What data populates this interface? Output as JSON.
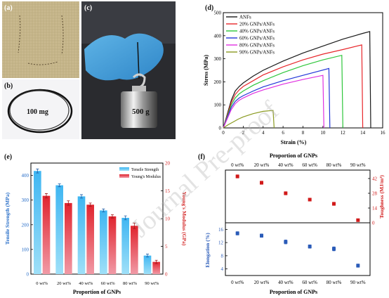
{
  "panel_labels": {
    "a": "(a)",
    "b": "(b)",
    "c": "(c)",
    "d": "(d)",
    "e": "(e)",
    "f": "(f)"
  },
  "photo_b_text": "100 mg",
  "photo_c_text": "500 g",
  "watermark": "Journal Pre-proof",
  "colors": {
    "ANFs": "#1a1a1a",
    "20% GNPs/ANFs": "#e8262b",
    "40% GNPs/ANFs": "#2ec63b",
    "60% GNPs/ANFs": "#2236d8",
    "80% GNPs/ANFs": "#e030e0",
    "90% GNPs/ANFs": "#8a9a20",
    "tensile_bar": "#3cb4f0",
    "modulus_bar": "#e8262b",
    "toughness_marker": "#d11a1a",
    "elongation_marker": "#2a5bb8"
  },
  "chart_data": [
    {
      "id": "d",
      "type": "line",
      "xlabel": "Strain (%)",
      "ylabel": "Stress (MPa)",
      "xlim": [
        0,
        16
      ],
      "ylim": [
        0,
        500
      ],
      "xticks": [
        0,
        2,
        4,
        6,
        8,
        10,
        12,
        14,
        16
      ],
      "yticks": [
        0,
        100,
        200,
        300,
        400,
        500
      ],
      "legend_position": "top-left",
      "series": [
        {
          "name": "ANFs",
          "points": [
            [
              0,
              0
            ],
            [
              0.4,
              60
            ],
            [
              0.8,
              120
            ],
            [
              1.2,
              160
            ],
            [
              1.6,
              180
            ],
            [
              2,
              195
            ],
            [
              3,
              225
            ],
            [
              4,
              250
            ],
            [
              6,
              290
            ],
            [
              8,
              325
            ],
            [
              10,
              355
            ],
            [
              12,
              385
            ],
            [
              14,
              410
            ],
            [
              14.7,
              418
            ],
            [
              14.8,
              0
            ]
          ]
        },
        {
          "name": "20% GNPs/ANFs",
          "points": [
            [
              0,
              0
            ],
            [
              0.4,
              55
            ],
            [
              0.8,
              110
            ],
            [
              1.2,
              145
            ],
            [
              1.6,
              165
            ],
            [
              2,
              180
            ],
            [
              3,
              205
            ],
            [
              4,
              230
            ],
            [
              6,
              265
            ],
            [
              8,
              295
            ],
            [
              10,
              320
            ],
            [
              12,
              340
            ],
            [
              13.9,
              360
            ],
            [
              14,
              0
            ]
          ]
        },
        {
          "name": "40% GNPs/ANFs",
          "points": [
            [
              0,
              0
            ],
            [
              0.4,
              50
            ],
            [
              0.8,
              100
            ],
            [
              1.2,
              130
            ],
            [
              1.6,
              148
            ],
            [
              2,
              160
            ],
            [
              3,
              185
            ],
            [
              4,
              205
            ],
            [
              6,
              240
            ],
            [
              8,
              270
            ],
            [
              10,
              295
            ],
            [
              11.9,
              315
            ],
            [
              12,
              0
            ]
          ]
        },
        {
          "name": "60% GNPs/ANFs",
          "points": [
            [
              0,
              0
            ],
            [
              0.4,
              45
            ],
            [
              0.8,
              90
            ],
            [
              1.2,
              115
            ],
            [
              1.6,
              130
            ],
            [
              2,
              140
            ],
            [
              3,
              160
            ],
            [
              4,
              178
            ],
            [
              6,
              205
            ],
            [
              8,
              228
            ],
            [
              10.6,
              258
            ],
            [
              10.7,
              0
            ]
          ]
        },
        {
          "name": "80% GNPs/ANFs",
          "points": [
            [
              0,
              0
            ],
            [
              0.4,
              40
            ],
            [
              0.8,
              80
            ],
            [
              1.2,
              105
            ],
            [
              1.6,
              120
            ],
            [
              2,
              130
            ],
            [
              3,
              150
            ],
            [
              4,
              165
            ],
            [
              6,
              190
            ],
            [
              8,
              210
            ],
            [
              10,
              228
            ],
            [
              10.1,
              0
            ]
          ]
        },
        {
          "name": "90% GNPs/ANFs",
          "points": [
            [
              0,
              0
            ],
            [
              0.5,
              14
            ],
            [
              1,
              26
            ],
            [
              1.5,
              38
            ],
            [
              2,
              48
            ],
            [
              3,
              62
            ],
            [
              4,
              72
            ],
            [
              5,
              76
            ],
            [
              5.1,
              0
            ]
          ]
        }
      ]
    },
    {
      "id": "e",
      "type": "bar",
      "xlabel": "Proportion of GNPs",
      "ylabel_left": "Tensile Strength (MPa)",
      "ylabel_right": "Young's Modulus (GPa)",
      "categories": [
        "0 wt%",
        "20 wt%",
        "40 wt%",
        "60 wt%",
        "80 wt%",
        "90 wt%"
      ],
      "ylim_left": [
        0,
        450
      ],
      "ylim_right": [
        0,
        20
      ],
      "yticks_left": [
        0,
        100,
        200,
        300,
        400
      ],
      "yticks_right": [
        0,
        5,
        10,
        15,
        20
      ],
      "legend_position": "top-right",
      "series": [
        {
          "name": "Tensile Strength",
          "axis": "left",
          "values": [
            418,
            360,
            315,
            258,
            228,
            75
          ],
          "errors": [
            8,
            6,
            7,
            6,
            8,
            6
          ]
        },
        {
          "name": "Young's Modulus",
          "axis": "right",
          "values": [
            14.1,
            12.8,
            12.5,
            10.4,
            8.7,
            2.2
          ],
          "errors": [
            0.4,
            0.4,
            0.3,
            0.3,
            0.5,
            0.3
          ]
        }
      ]
    },
    {
      "id": "f",
      "type": "scatter",
      "xlabel_top": "Proportion of GNPs",
      "xlabel_bottom": "Proportion of GNPs",
      "categories": [
        "0 wt%",
        "20 wt%",
        "40 wt%",
        "60 wt%",
        "80 wt%",
        "90 wt%"
      ],
      "panels": [
        {
          "name": "Toughness",
          "ylabel": "Toughness (MJ/m³)",
          "axis": "right",
          "ylim": [
            0,
            50
          ],
          "yticks": [
            0,
            14,
            28,
            42
          ],
          "values": [
            44,
            38,
            28,
            22,
            18,
            2.5
          ],
          "errors": [
            1.5,
            1.5,
            1.5,
            1.2,
            1.5,
            0.5
          ]
        },
        {
          "name": "Elongation",
          "ylabel": "Elongation (%)",
          "axis": "left",
          "ylim": [
            2,
            18
          ],
          "yticks": [
            4,
            8,
            12,
            16
          ],
          "values": [
            14.8,
            14.1,
            12.2,
            10.8,
            10.1,
            5.0
          ],
          "errors": [
            0.5,
            0.5,
            0.6,
            0.5,
            0.6,
            0.5
          ]
        }
      ]
    }
  ]
}
